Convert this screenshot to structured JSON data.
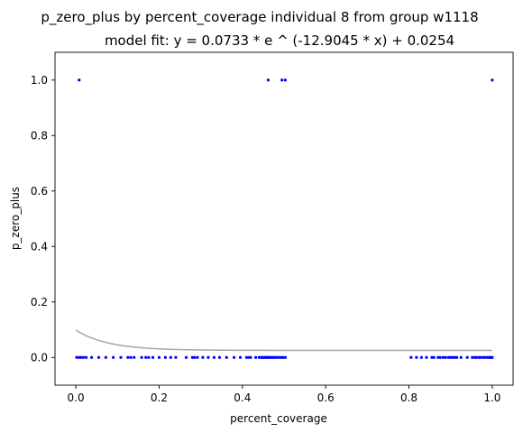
{
  "chart_data": {
    "type": "scatter",
    "title": "p_zero_plus by percent_coverage individual 8 from group w1118",
    "subtitle": "model fit: y = 0.0733 * e ^ (-12.9045 * x) + 0.0254",
    "xlabel": "percent_coverage",
    "ylabel": "p_zero_plus",
    "xlim": [
      -0.05,
      1.05
    ],
    "ylim": [
      -0.1,
      1.1
    ],
    "xticks": [
      0.0,
      0.2,
      0.4,
      0.6,
      0.8,
      1.0
    ],
    "xtick_labels": [
      "0.0",
      "0.2",
      "0.4",
      "0.6",
      "0.8",
      "1.0"
    ],
    "yticks": [
      0.0,
      0.2,
      0.4,
      0.6,
      0.8,
      1.0
    ],
    "ytick_labels": [
      "0.0",
      "0.2",
      "0.4",
      "0.6",
      "0.8",
      "1.0"
    ],
    "grid": false,
    "legend": "none",
    "point_color": "#0000ff",
    "fit_color": "#aaaaaa",
    "fit": {
      "form": "exponential",
      "a": 0.0733,
      "b": -12.9045,
      "c": 0.0254,
      "x_range": [
        0.0,
        1.0
      ]
    },
    "points": {
      "x": [
        0.002,
        0.008,
        0.012,
        0.018,
        0.025,
        0.038,
        0.055,
        0.072,
        0.09,
        0.108,
        0.125,
        0.132,
        0.14,
        0.158,
        0.168,
        0.175,
        0.185,
        0.2,
        0.215,
        0.228,
        0.24,
        0.265,
        0.28,
        0.285,
        0.292,
        0.305,
        0.318,
        0.332,
        0.345,
        0.362,
        0.38,
        0.395,
        0.41,
        0.415,
        0.42,
        0.432,
        0.44,
        0.445,
        0.448,
        0.452,
        0.455,
        0.458,
        0.46,
        0.463,
        0.466,
        0.47,
        0.474,
        0.478,
        0.482,
        0.488,
        0.493,
        0.498,
        0.503,
        0.805,
        0.818,
        0.83,
        0.842,
        0.855,
        0.86,
        0.87,
        0.875,
        0.882,
        0.888,
        0.895,
        0.9,
        0.905,
        0.91,
        0.915,
        0.925,
        0.94,
        0.952,
        0.958,
        0.962,
        0.968,
        0.972,
        0.978,
        0.983,
        0.988,
        0.992,
        0.995,
        0.998,
        1.0,
        0.008,
        0.462,
        0.495,
        0.503,
        1.0
      ],
      "y": [
        0,
        0,
        0,
        0,
        0,
        0,
        0,
        0,
        0,
        0,
        0,
        0,
        0,
        0,
        0,
        0,
        0,
        0,
        0,
        0,
        0,
        0,
        0,
        0,
        0,
        0,
        0,
        0,
        0,
        0,
        0,
        0,
        0,
        0,
        0,
        0,
        0,
        0,
        0,
        0,
        0,
        0,
        0,
        0,
        0,
        0,
        0,
        0,
        0,
        0,
        0,
        0,
        0,
        0,
        0,
        0,
        0,
        0,
        0,
        0,
        0,
        0,
        0,
        0,
        0,
        0,
        0,
        0,
        0,
        0,
        0,
        0,
        0,
        0,
        0,
        0,
        0,
        0,
        0,
        0,
        0,
        0,
        1,
        1,
        1,
        1,
        1
      ]
    }
  }
}
